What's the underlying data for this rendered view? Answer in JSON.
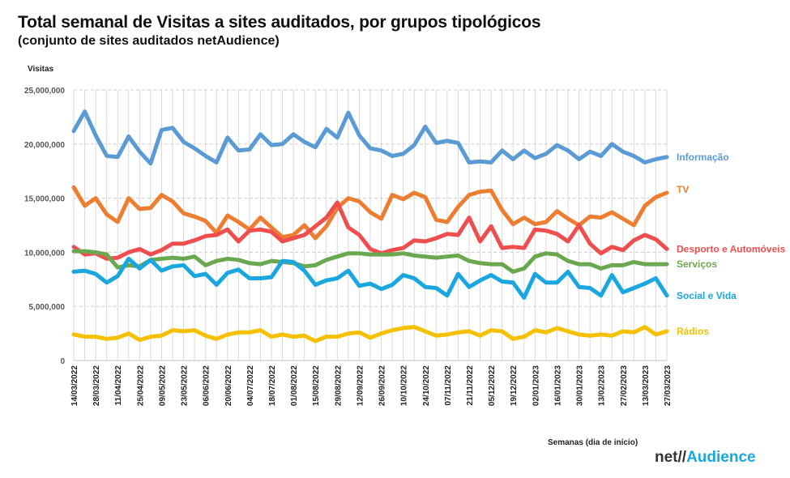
{
  "title": "Total semanal de Visitas a sites auditados, por grupos tipológicos",
  "subtitle": "(conjunto de sites auditados netAudience)",
  "logo": {
    "net": "net//",
    "audience": "Audience"
  },
  "chart_data": {
    "type": "line",
    "ylabel": "Visitas",
    "xlabel": "Semanas  (dia de início)",
    "ylim": [
      0,
      25000000
    ],
    "yticks": [
      0,
      5000000,
      10000000,
      15000000,
      20000000,
      25000000
    ],
    "ytick_labels": [
      "0",
      "5,000,000",
      "10,000,000",
      "15,000,000",
      "20,000,000",
      "25,000,000"
    ],
    "grid": "horizontal dashed + vertical per week",
    "xtick_labels": [
      "14/03/2022",
      "28/03/2022",
      "11/04/2022",
      "25/04/2022",
      "09/05/2022",
      "23/05/2022",
      "06/06/2022",
      "20/06/2022",
      "04/07/2022",
      "18/07/2022",
      "01/08/2022",
      "15/08/2022",
      "29/08/2022",
      "12/09/2022",
      "26/09/2022",
      "10/10/2022",
      "24/10/2022",
      "07/11/2022",
      "21/11/2022",
      "05/12/2022",
      "19/12/2022",
      "02/01/2023",
      "16/01/2023",
      "30/01/2023",
      "13/02/2023",
      "27/02/2023",
      "13/03/2023",
      "27/03/2023"
    ],
    "series": [
      {
        "name": "Informação",
        "color": "#5b9bd5",
        "values": [
          21200000,
          23000000,
          20800000,
          18900000,
          18800000,
          20700000,
          19300000,
          18200000,
          21300000,
          21500000,
          20200000,
          19600000,
          18900000,
          18300000,
          20600000,
          19400000,
          19500000,
          20900000,
          19900000,
          20000000,
          20900000,
          20200000,
          19700000,
          21400000,
          20600000,
          22900000,
          20800000,
          19600000,
          19400000,
          18900000,
          19100000,
          19900000,
          21600000,
          20100000,
          20300000,
          20100000,
          18300000,
          18400000,
          18300000,
          19400000,
          18600000,
          19400000,
          18700000,
          19100000,
          19900000,
          19400000,
          18600000,
          19300000,
          18900000,
          20000000,
          19300000,
          18900000,
          18300000,
          18600000,
          18800000
        ]
      },
      {
        "name": "TV",
        "color": "#ed7d31",
        "values": [
          16000000,
          14300000,
          15000000,
          13500000,
          12800000,
          15000000,
          14000000,
          14100000,
          15300000,
          14700000,
          13600000,
          13300000,
          12900000,
          11800000,
          13400000,
          12800000,
          12100000,
          13200000,
          12300000,
          11400000,
          11600000,
          12500000,
          11300000,
          12400000,
          14100000,
          15000000,
          14700000,
          13700000,
          13100000,
          15300000,
          14900000,
          15500000,
          15100000,
          13000000,
          12800000,
          14200000,
          15300000,
          15600000,
          15700000,
          13900000,
          12600000,
          13200000,
          12600000,
          12800000,
          13800000,
          13100000,
          12500000,
          13300000,
          13200000,
          13700000,
          13100000,
          12500000,
          14300000,
          15100000,
          15500000
        ]
      },
      {
        "name": "Desporto e Automóveis",
        "color": "#f04e4e",
        "values": [
          10500000,
          9800000,
          9900000,
          9400000,
          9500000,
          10000000,
          10300000,
          9800000,
          10200000,
          10800000,
          10800000,
          11100000,
          11500000,
          11600000,
          12100000,
          11000000,
          12000000,
          12100000,
          11900000,
          11000000,
          11300000,
          11600000,
          12400000,
          13200000,
          14600000,
          12300000,
          11600000,
          10300000,
          9900000,
          10200000,
          10400000,
          11100000,
          11000000,
          11300000,
          11700000,
          11600000,
          13200000,
          11000000,
          12400000,
          10400000,
          10500000,
          10400000,
          12100000,
          12000000,
          11700000,
          11000000,
          12500000,
          10800000,
          9900000,
          10500000,
          10200000,
          11100000,
          11600000,
          11200000,
          10300000
        ]
      },
      {
        "name": "Serviços",
        "color": "#6aa84f",
        "values": [
          10100000,
          10100000,
          10000000,
          9800000,
          8600000,
          8800000,
          8700000,
          9300000,
          9400000,
          9500000,
          9400000,
          9600000,
          8800000,
          9200000,
          9400000,
          9300000,
          9000000,
          8900000,
          9200000,
          9100000,
          9000000,
          8700000,
          8800000,
          9300000,
          9600000,
          9900000,
          9900000,
          9800000,
          9800000,
          9800000,
          9900000,
          9700000,
          9600000,
          9500000,
          9600000,
          9700000,
          9200000,
          9000000,
          8900000,
          8900000,
          8200000,
          8500000,
          9600000,
          9900000,
          9800000,
          9200000,
          8900000,
          8900000,
          8500000,
          8800000,
          8800000,
          9100000,
          8900000,
          8900000,
          8900000
        ]
      },
      {
        "name": "Social e Vida",
        "color": "#1aa7e0",
        "values": [
          8200000,
          8300000,
          8000000,
          7200000,
          7800000,
          9400000,
          8500000,
          9300000,
          8300000,
          8700000,
          8800000,
          7800000,
          8000000,
          7000000,
          8100000,
          8400000,
          7600000,
          7600000,
          7700000,
          9200000,
          9100000,
          8300000,
          7000000,
          7400000,
          7600000,
          8300000,
          6900000,
          7100000,
          6600000,
          7000000,
          7900000,
          7600000,
          6800000,
          6700000,
          6000000,
          8000000,
          6800000,
          7400000,
          7900000,
          7300000,
          7200000,
          5800000,
          8000000,
          7200000,
          7200000,
          8200000,
          6800000,
          6700000,
          6000000,
          7900000,
          6300000,
          6700000,
          7100000,
          7600000,
          6000000
        ]
      },
      {
        "name": "Rádios",
        "color": "#f5c000",
        "values": [
          2400000,
          2200000,
          2200000,
          2000000,
          2100000,
          2500000,
          1900000,
          2200000,
          2300000,
          2800000,
          2700000,
          2800000,
          2300000,
          2000000,
          2400000,
          2600000,
          2600000,
          2800000,
          2200000,
          2400000,
          2200000,
          2300000,
          1800000,
          2200000,
          2200000,
          2500000,
          2600000,
          2100000,
          2500000,
          2800000,
          3000000,
          3100000,
          2700000,
          2300000,
          2400000,
          2600000,
          2700000,
          2300000,
          2800000,
          2700000,
          2000000,
          2200000,
          2800000,
          2600000,
          3000000,
          2700000,
          2400000,
          2300000,
          2400000,
          2300000,
          2700000,
          2600000,
          3100000,
          2400000,
          2700000
        ]
      }
    ]
  }
}
